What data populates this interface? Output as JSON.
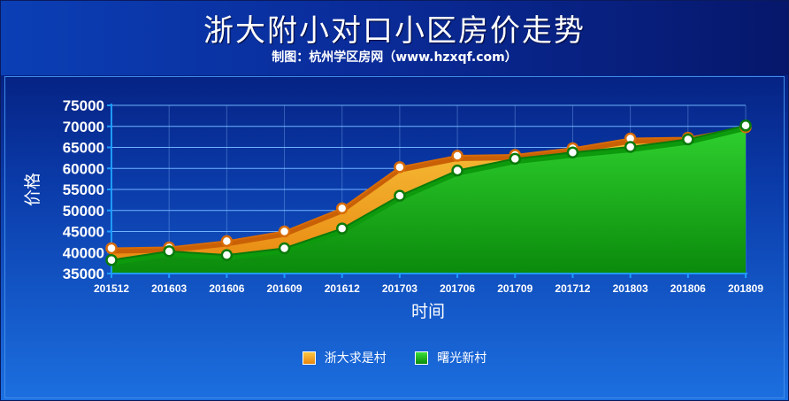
{
  "title": "浙大附小对口小区房价走势",
  "subtitle": "制图：杭州学区房网（www.hzxqf.com）",
  "chart_data": {
    "type": "area",
    "title": "浙大附小对口小区房价走势",
    "subtitle": "制图：杭州学区房网（www.hzxqf.com）",
    "xlabel": "时间",
    "ylabel": "价格",
    "ylim": [
      35000,
      75000
    ],
    "yticks": [
      35000,
      40000,
      45000,
      50000,
      55000,
      60000,
      65000,
      70000,
      75000
    ],
    "grid": true,
    "legend_position": "bottom",
    "categories": [
      "201512",
      "201603",
      "201606",
      "201609",
      "201612",
      "201703",
      "201706",
      "201709",
      "201712",
      "201803",
      "201806",
      "201809"
    ],
    "series": [
      {
        "name": "浙大求是村",
        "color": "#f29a18",
        "values": [
          41000,
          41200,
          42700,
          45000,
          50500,
          60300,
          63000,
          63200,
          64800,
          67100,
          67300,
          69800
        ]
      },
      {
        "name": "曙光新村",
        "color": "#22c322",
        "values": [
          38200,
          40300,
          39400,
          41000,
          45700,
          53500,
          59500,
          62300,
          63800,
          65100,
          66900,
          70200
        ]
      }
    ]
  }
}
